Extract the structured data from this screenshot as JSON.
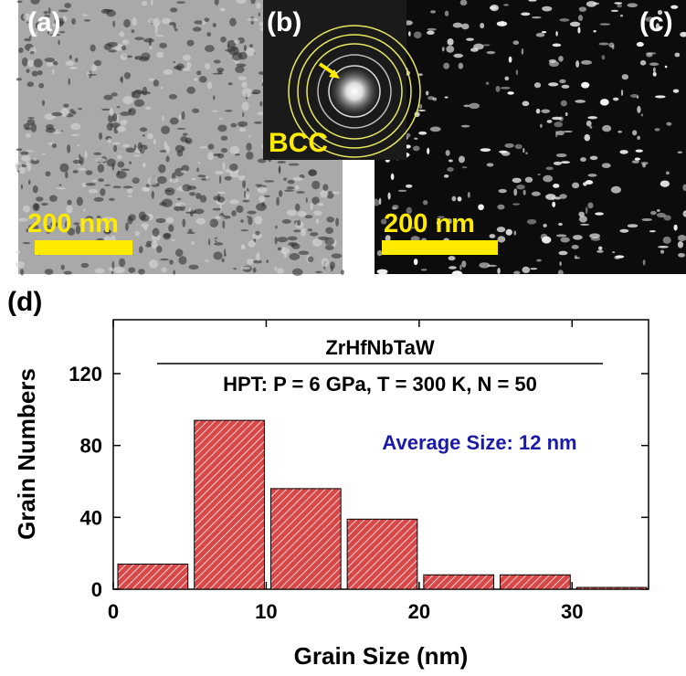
{
  "panel_labels": [
    "(a)",
    "(b)",
    "(c)"
  ],
  "scale_bar_a": "200 nm",
  "scale_bar_c": "200 nm",
  "diffraction_label": "BCC",
  "chart_data": {
    "type": "histogram",
    "panel_label": "(d)",
    "title": "ZrHfNbTaW",
    "subtitle": "HPT: P = 6 GPa, T = 300 K, N = 50",
    "annotation": "Average Size: 12 nm",
    "annotation_color": "#1a1aa8",
    "xlabel": "Grain Size (nm)",
    "ylabel": "Grain Numbers",
    "bins": [
      0,
      5,
      10,
      15,
      20,
      25,
      30,
      35
    ],
    "values": [
      14,
      94,
      56,
      39,
      8,
      8,
      1
    ],
    "color": "#d94848",
    "hatch": true,
    "xlim": [
      0,
      35
    ],
    "ylim": [
      0,
      150
    ],
    "xticks": [
      0,
      10,
      20,
      30
    ],
    "yticks": [
      0,
      40,
      80,
      120
    ]
  }
}
